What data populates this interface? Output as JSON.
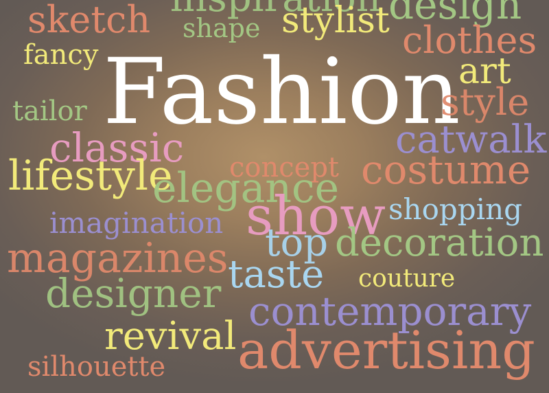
{
  "title": {
    "text": "Fashion",
    "color": "#ffffff"
  },
  "words": [
    {
      "id": "inspiration",
      "text": "inspiration",
      "color": "#a3c784"
    },
    {
      "id": "design",
      "text": "design",
      "color": "#a3c784"
    },
    {
      "id": "sketch",
      "text": "sketch",
      "color": "#e0896c"
    },
    {
      "id": "shape",
      "text": "shape",
      "color": "#a3c784"
    },
    {
      "id": "stylist",
      "text": "stylist",
      "color": "#f2ea7a"
    },
    {
      "id": "clothes",
      "text": "clothes",
      "color": "#e0896c"
    },
    {
      "id": "fancy",
      "text": "fancy",
      "color": "#f2ea7a"
    },
    {
      "id": "art",
      "text": "art",
      "color": "#f2ea7a"
    },
    {
      "id": "tailor",
      "text": "tailor",
      "color": "#a3c784"
    },
    {
      "id": "style",
      "text": "style",
      "color": "#e0896c"
    },
    {
      "id": "classic",
      "text": "classic",
      "color": "#e79cc0"
    },
    {
      "id": "catwalk",
      "text": "catwalk",
      "color": "#9b8fd0"
    },
    {
      "id": "concept",
      "text": "concept",
      "color": "#e0896c"
    },
    {
      "id": "lifestyle",
      "text": "lifestyle",
      "color": "#f2ea7a"
    },
    {
      "id": "costume",
      "text": "costume",
      "color": "#e0896c"
    },
    {
      "id": "elegance",
      "text": "elegance",
      "color": "#a3c784"
    },
    {
      "id": "show",
      "text": "show",
      "color": "#e79cc0"
    },
    {
      "id": "shopping",
      "text": "shopping",
      "color": "#a9d6f0"
    },
    {
      "id": "imagination",
      "text": "imagination",
      "color": "#9b8fd0"
    },
    {
      "id": "top",
      "text": "top",
      "color": "#a9d6f0"
    },
    {
      "id": "decoration",
      "text": "decoration",
      "color": "#a3c784"
    },
    {
      "id": "magazines",
      "text": "magazines",
      "color": "#e0896c"
    },
    {
      "id": "taste",
      "text": "taste",
      "color": "#a9d6f0"
    },
    {
      "id": "couture",
      "text": "couture",
      "color": "#f2ea7a"
    },
    {
      "id": "designer",
      "text": "designer",
      "color": "#a3c784"
    },
    {
      "id": "contemporary",
      "text": "contemporary",
      "color": "#9b8fd0"
    },
    {
      "id": "revival",
      "text": "revival",
      "color": "#f2ea7a"
    },
    {
      "id": "advertising",
      "text": "advertising",
      "color": "#e0896c"
    },
    {
      "id": "silhouette",
      "text": "silhouette",
      "color": "#e0896c"
    }
  ]
}
